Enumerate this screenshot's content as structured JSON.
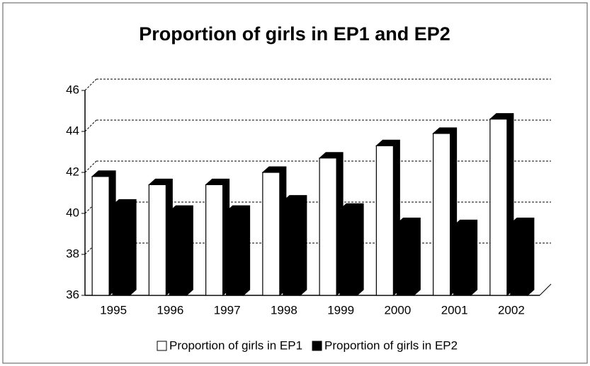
{
  "chart_data": {
    "type": "bar3d",
    "title": "Proportion of girls in EP1 and EP2",
    "categories": [
      "1995",
      "1996",
      "1997",
      "1998",
      "1999",
      "2000",
      "2001",
      "2002"
    ],
    "series": [
      {
        "name": "Proportion of girls in EP1",
        "color": "#ffffff",
        "values": [
          41.8,
          41.4,
          41.4,
          42.0,
          42.7,
          43.3,
          43.9,
          44.6
        ]
      },
      {
        "name": "Proportion of girls in EP2",
        "color": "#000000",
        "values": [
          40.4,
          40.1,
          40.1,
          40.6,
          40.2,
          39.5,
          39.4,
          39.5
        ]
      }
    ],
    "ylim": [
      36,
      46
    ],
    "yticks": [
      36,
      38,
      40,
      42,
      44,
      46
    ],
    "grid": true,
    "legend": "bottom"
  }
}
